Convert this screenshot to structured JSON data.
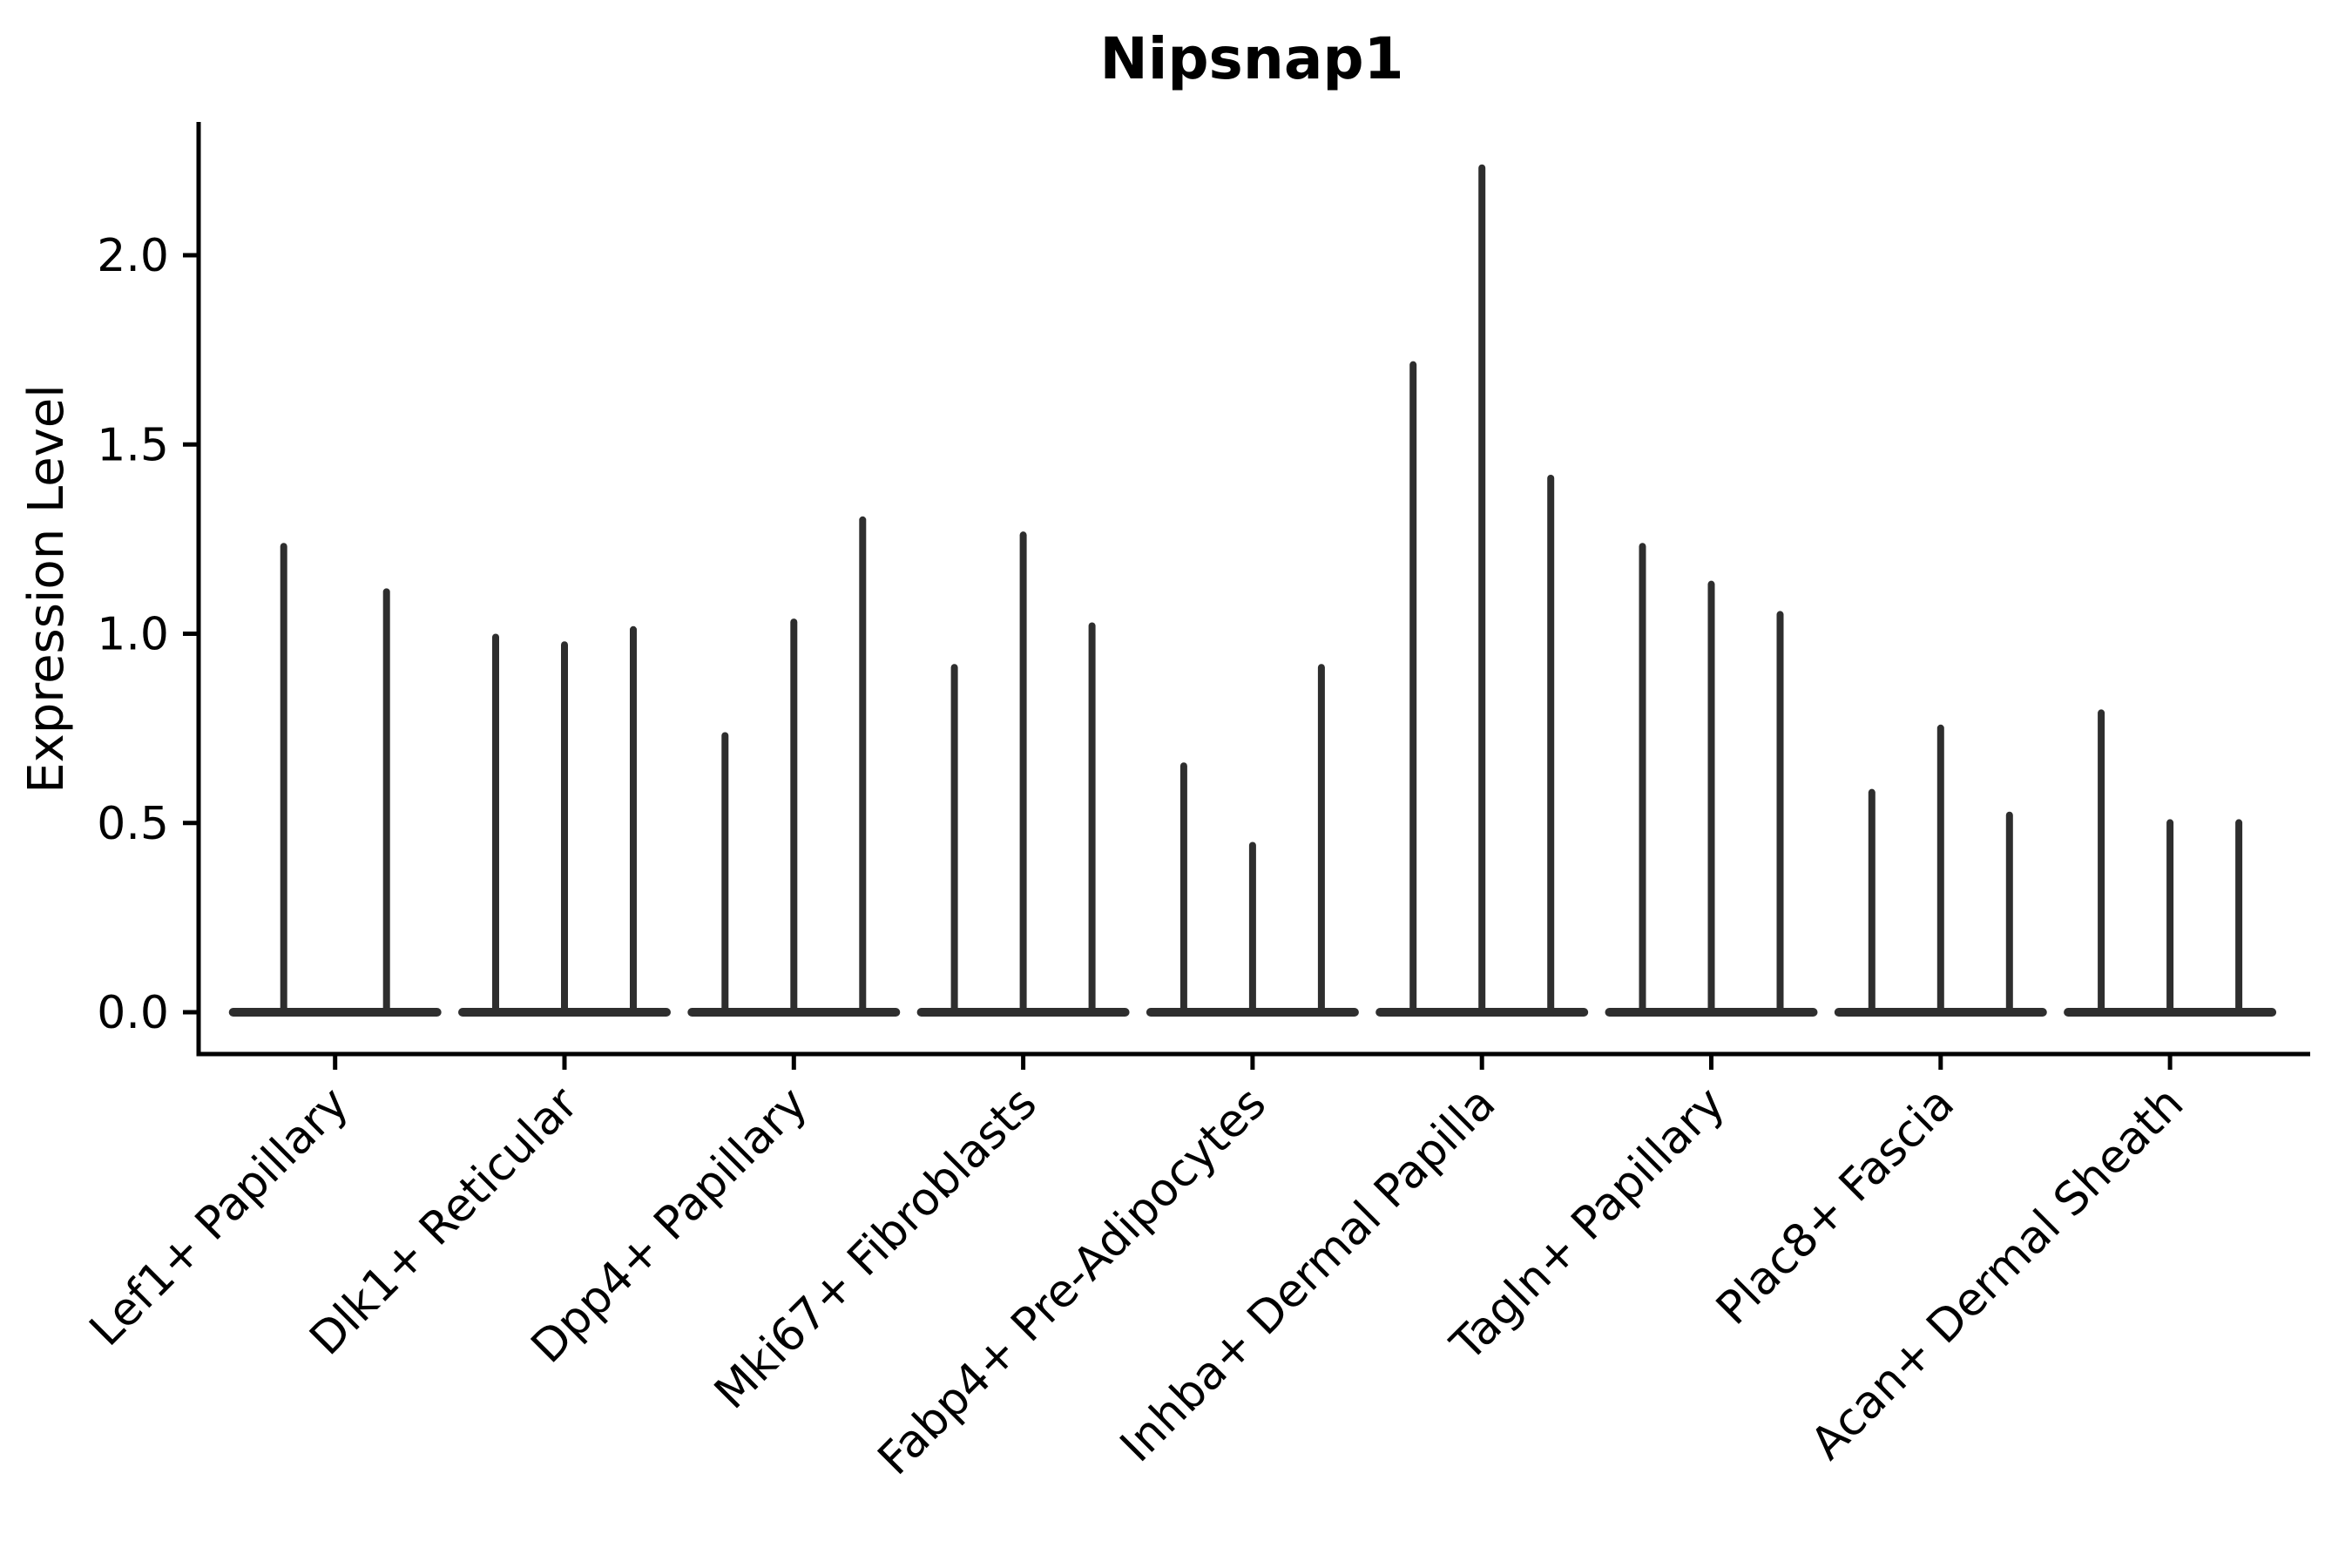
{
  "chart_data": {
    "type": "violin",
    "title": "Nipsnap1",
    "xlabel": "",
    "ylabel": "Expression Level",
    "ytick_values": [
      0.0,
      0.5,
      1.0,
      1.5,
      2.0
    ],
    "ytick_labels": [
      "0.0",
      "0.5",
      "1.0",
      "1.5",
      "2.0"
    ],
    "ylim": [
      -0.11,
      2.35
    ],
    "grid": "off",
    "legend": "none",
    "violin_color": "#2e2e2e",
    "description": "Thin spike-like violins: wide flat base at 0 expression with a narrow spike up to the max expression value per violin; 2-3 violins per cell-type group",
    "categories": [
      "Lef1+ Papillary",
      "Dlk1+ Reticular",
      "Dpp4+ Papillary",
      "Mki67+ Fibroblasts",
      "Fabp4+ Pre-Adipocytes",
      "Inhba+ Dermal Papilla",
      "Tagln+ Papillary",
      "Plac8+ Fascia",
      "Acan+ Dermal Sheath"
    ],
    "groups": [
      {
        "category": "Lef1+ Papillary",
        "violin_max_values": [
          1.24,
          1.12
        ]
      },
      {
        "category": "Dlk1+ Reticular",
        "violin_max_values": [
          1.0,
          0.98,
          1.02
        ]
      },
      {
        "category": "Dpp4+ Papillary",
        "violin_max_values": [
          0.74,
          1.04,
          1.31
        ]
      },
      {
        "category": "Mki67+ Fibroblasts",
        "violin_max_values": [
          0.92,
          1.27,
          1.03
        ]
      },
      {
        "category": "Fabp4+ Pre-Adipocytes",
        "violin_max_values": [
          0.66,
          0.45,
          0.92
        ]
      },
      {
        "category": "Inhba+ Dermal Papilla",
        "violin_max_values": [
          1.72,
          2.24,
          1.42
        ]
      },
      {
        "category": "Tagln+ Papillary",
        "violin_max_values": [
          1.24,
          1.14,
          1.06
        ]
      },
      {
        "category": "Plac8+ Fascia",
        "violin_max_values": [
          0.59,
          0.76,
          0.53
        ]
      },
      {
        "category": "Acan+ Dermal Sheath",
        "violin_max_values": [
          0.8,
          0.51,
          0.51
        ]
      }
    ]
  }
}
